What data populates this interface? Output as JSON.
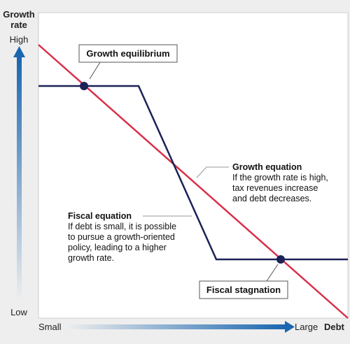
{
  "axes": {
    "y_title_line1": "Growth",
    "y_title_line2": "rate",
    "y_high": "High",
    "y_low": "Low",
    "x_small": "Small",
    "x_large": "Large",
    "x_title": "Debt"
  },
  "labels": {
    "growth_equilibrium": "Growth equilibrium",
    "fiscal_stagnation": "Fiscal stagnation"
  },
  "growth_equation": {
    "title": "Growth equation",
    "lines": [
      "If the growth rate is high,",
      "tax revenues increase",
      "and debt decreases."
    ]
  },
  "fiscal_equation": {
    "title": "Fiscal equation",
    "lines": [
      "If debt is small, it is possible",
      "to pursue a growth-oriented",
      "policy, leading to a higher",
      "growth rate."
    ]
  },
  "colors": {
    "growth_line": "#d9304a",
    "fiscal_line": "#1c2257",
    "arrow_blue": "#1a66b0"
  }
}
